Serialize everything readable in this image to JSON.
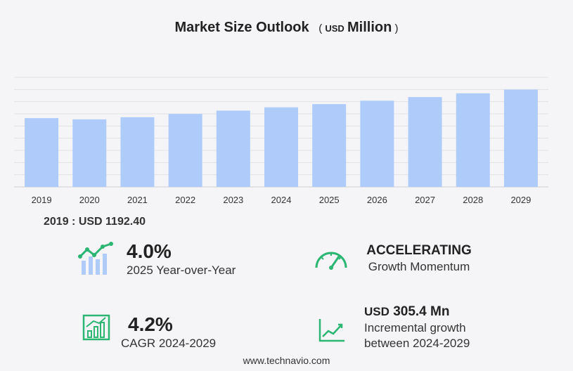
{
  "header": {
    "title": "Market Size Outlook",
    "unit_open": "(",
    "unit_currency": "USD",
    "unit_scale": "Million",
    "unit_close": ")"
  },
  "chart_data": {
    "type": "bar",
    "categories": [
      "2019",
      "2020",
      "2021",
      "2022",
      "2023",
      "2024",
      "2025",
      "2026",
      "2027",
      "2028",
      "2029"
    ],
    "values": [
      1192.4,
      1171.0,
      1208.0,
      1265.0,
      1322.0,
      1380.0,
      1435.0,
      1494.0,
      1557.0,
      1622.0,
      1686.0
    ],
    "ylim": [
      0,
      1900
    ],
    "grid": true,
    "bar_color": "#aecbfa"
  },
  "base_stat": "2019 : USD  1192.40",
  "stats": {
    "yoy": {
      "value": "4.0%",
      "label": "2025 Year-over-Year"
    },
    "momentum": {
      "value": "ACCELERATING",
      "label": "Growth Momentum"
    },
    "cagr": {
      "value": "4.2%",
      "label": "CAGR 2024-2029"
    },
    "incremental": {
      "currency": "USD",
      "value": "305.4 Mn",
      "label_line1": "Incremental growth",
      "label_line2": "between 2024-2029"
    }
  },
  "icons": {
    "yoy": "bar-growth-icon",
    "momentum": "speedometer-icon",
    "cagr": "bar-chart-icon",
    "incremental": "line-chart-icon",
    "accent": "#2bb673"
  },
  "footer": "www.technavio.com"
}
